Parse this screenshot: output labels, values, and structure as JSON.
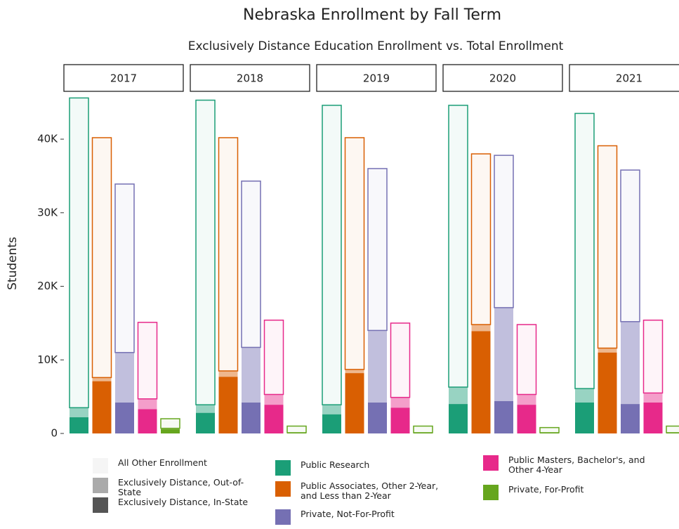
{
  "chart_data": {
    "type": "faceted-stacked-bar",
    "title": "Nebraska Enrollment by Fall Term",
    "subtitle": "Exclusively Distance Education Enrollment vs. Total Enrollment",
    "y_label": "Students",
    "ylim": [
      0,
      46500
    ],
    "yticks": [
      0,
      {
        "value": 10000,
        "label": "10K"
      },
      {
        "value": 20000,
        "label": "20K"
      },
      {
        "value": 30000,
        "label": "30K"
      },
      {
        "value": 40000,
        "label": "40K"
      }
    ],
    "sectors": [
      {
        "name": "Public Research",
        "color": "#1b9e77"
      },
      {
        "name": "Public Associates, Other 2-Year, and Less than 2-Year",
        "color": "#d95f02"
      },
      {
        "name": "Private, Not-For-Profit",
        "color": "#7570b3"
      },
      {
        "name": "Public Masters, Bachelor's, and Other 4-Year",
        "color": "#e7298a"
      },
      {
        "name": "Private, For-Profit",
        "color": "#66a61e"
      }
    ],
    "stack_levels": [
      {
        "name": "Exclusively Distance, In-State",
        "color": "#555555",
        "opacity": 1
      },
      {
        "name": "Exclusively Distance, Out-of-State",
        "color": "#aaaaaa",
        "opacity": 0.45
      },
      {
        "name": "All Other Enrollment",
        "color": "#f5f5f5",
        "opacity": 0.05
      }
    ],
    "panels": [
      {
        "title": "2017",
        "values": [
          [
            2200,
            1300,
            42100
          ],
          [
            7100,
            500,
            32600
          ],
          [
            4200,
            6800,
            22900
          ],
          [
            3300,
            1400,
            10400
          ],
          [
            600,
            100,
            1300
          ]
        ]
      },
      {
        "title": "2018",
        "values": [
          [
            2800,
            1100,
            41400
          ],
          [
            7700,
            800,
            31700
          ],
          [
            4200,
            7500,
            22600
          ],
          [
            3900,
            1400,
            10100
          ],
          [
            100,
            0,
            900
          ]
        ]
      },
      {
        "title": "2019",
        "values": [
          [
            2600,
            1300,
            40700
          ],
          [
            8200,
            500,
            31500
          ],
          [
            4200,
            9800,
            22000
          ],
          [
            3500,
            1400,
            10100
          ],
          [
            100,
            0,
            900
          ]
        ]
      },
      {
        "title": "2020",
        "values": [
          [
            4000,
            2300,
            38300
          ],
          [
            13900,
            900,
            23200
          ],
          [
            4400,
            12700,
            20700
          ],
          [
            3900,
            1400,
            9500
          ],
          [
            100,
            0,
            700
          ]
        ]
      },
      {
        "title": "2021",
        "values": [
          [
            4200,
            1900,
            37400
          ],
          [
            11000,
            600,
            27500
          ],
          [
            4000,
            11200,
            20600
          ],
          [
            4200,
            1300,
            9900
          ],
          [
            100,
            0,
            900
          ]
        ]
      }
    ]
  }
}
